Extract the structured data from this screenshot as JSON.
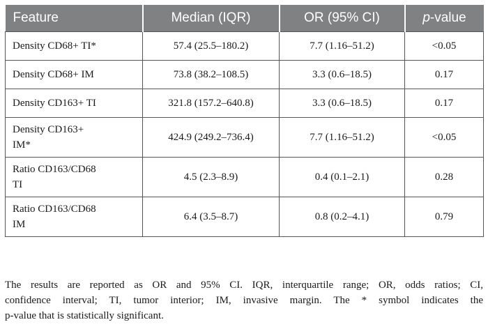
{
  "table": {
    "headers": [
      "Feature",
      "Median (IQR)",
      "OR (95% CI)",
      "value"
    ],
    "header_p": "p",
    "header_p_sep": "-",
    "rows": [
      {
        "feature_line1": "Density CD68+ TI*",
        "feature_line2": "",
        "median": "57.4 (25.5–180.2)",
        "or": "7.7 (1.16–51.2)",
        "p": "<0.05"
      },
      {
        "feature_line1": "Density CD68+ IM",
        "feature_line2": "",
        "median": "73.8 (38.2–108.5)",
        "or": "3.3 (0.6–18.5)",
        "p": "0.17"
      },
      {
        "feature_line1": "Density CD163+ TI",
        "feature_line2": "",
        "median": "321.8 (157.2–640.8)",
        "or": "3.3 (0.6–18.5)",
        "p": "0.17"
      },
      {
        "feature_line1": "Density CD163+",
        "feature_line2": "IM*",
        "median": "424.9 (249.2–736.4)",
        "or": "7.7 (1.16–51.2)",
        "p": "<0.05"
      },
      {
        "feature_line1": "Ratio CD163/CD68",
        "feature_line2": "TI",
        "median": "4.5 (2.3–8.9)",
        "or": "0.4 (0.1–2.1)",
        "p": "0.28"
      },
      {
        "feature_line1": "Ratio CD163/CD68",
        "feature_line2": "IM",
        "median": "6.4 (3.5–8.7)",
        "or": "0.8 (0.2–4.1)",
        "p": "0.79"
      }
    ]
  },
  "footnote": {
    "line1": "The results are reported as OR and 95% CI. IQR, interquartile range; OR, odds ratios; CI,",
    "line2": "confidence interval; TI, tumor interior; IM, invasive margin. The * symbol indicates the",
    "line3": "p-value that is statistically significant."
  }
}
